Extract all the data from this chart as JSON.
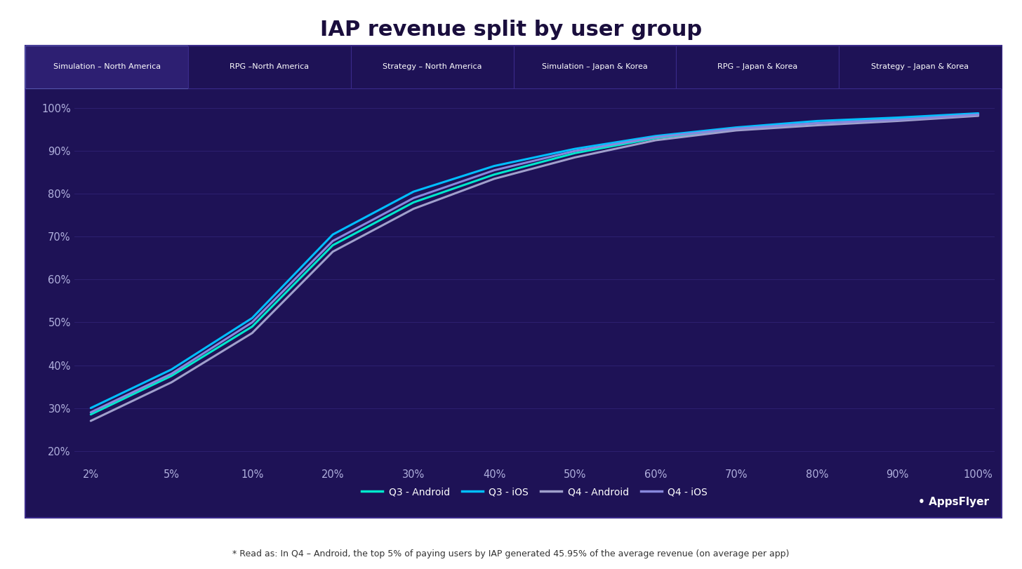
{
  "title": "IAP revenue split by user group",
  "background_color": "#1e1256",
  "outer_bg": "#ffffff",
  "title_color": "#1a0e3d",
  "footnote": "* Read as: In Q4 – Android, the top 5% of paying users by IAP generated 45.95% of the average revenue (on average per app)",
  "tab_labels": [
    "Simulation – North America",
    "RPG –North America",
    "Strategy – North America",
    "Simulation – Japan & Korea",
    "RPG – Japan & Korea",
    "Strategy – Japan & Korea"
  ],
  "active_tab": 0,
  "x_ticks": [
    "2%",
    "5%",
    "10%",
    "20%",
    "30%",
    "40%",
    "50%",
    "60%",
    "70%",
    "80%",
    "90%",
    "100%"
  ],
  "x_values": [
    2,
    5,
    10,
    20,
    30,
    40,
    50,
    60,
    70,
    80,
    90,
    100
  ],
  "y_ticks": [
    "20%",
    "30%",
    "40%",
    "50%",
    "60%",
    "70%",
    "80%",
    "90%",
    "100%"
  ],
  "y_values": [
    20,
    30,
    40,
    50,
    60,
    70,
    80,
    90,
    100
  ],
  "series": [
    {
      "label": "Q3 - Android",
      "color": "#00e8cc",
      "linewidth": 2.2,
      "linestyle": "-",
      "values": [
        28.5,
        37.5,
        49,
        68,
        78,
        84.5,
        89.5,
        93,
        95,
        96.5,
        97.5,
        98.5
      ]
    },
    {
      "label": "Q3 - iOS",
      "color": "#00bfff",
      "linewidth": 2.2,
      "linestyle": "-",
      "values": [
        30,
        39,
        51,
        70.5,
        80.5,
        86.5,
        90.5,
        93.5,
        95.5,
        97,
        97.8,
        98.8
      ]
    },
    {
      "label": "Q4 - Android",
      "color": "#a0a0cc",
      "linewidth": 2.2,
      "linestyle": "-",
      "values": [
        27,
        36,
        47.5,
        66.5,
        76.5,
        83.5,
        88.5,
        92.5,
        94.8,
        96,
        97,
        98.2
      ]
    },
    {
      "label": "Q4 - iOS",
      "color": "#8888dd",
      "linewidth": 2.2,
      "linestyle": "-",
      "values": [
        29,
        38,
        50,
        69,
        79,
        85.5,
        90,
        93.2,
        95.2,
        96.5,
        97.3,
        98.5
      ]
    }
  ],
  "legend_labels": [
    "Q3 - Android",
    "Q3 - iOS",
    "Q4 - Android",
    "Q4 - iOS"
  ],
  "legend_colors": [
    "#00e8cc",
    "#00bfff",
    "#a0a0cc",
    "#8888dd"
  ],
  "grid_color": "#2d2070",
  "tick_color": "#b0b0dd",
  "appsflyer_color": "#ffffff",
  "box_border_color": "#3a2a8a"
}
